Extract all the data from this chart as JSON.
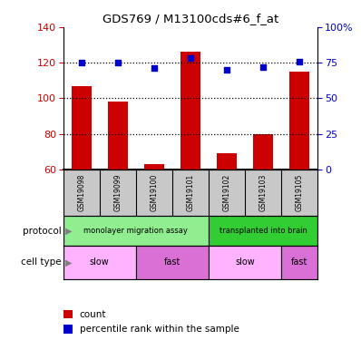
{
  "title": "GDS769 / M13100cds#6_f_at",
  "samples": [
    "GSM19098",
    "GSM19099",
    "GSM19100",
    "GSM19101",
    "GSM19102",
    "GSM19103",
    "GSM19105"
  ],
  "bar_values": [
    107,
    98,
    63,
    126,
    69,
    80,
    115
  ],
  "scatter_values": [
    75,
    75,
    71,
    78,
    70,
    72,
    76
  ],
  "ylim_left": [
    60,
    140
  ],
  "ylim_right": [
    0,
    100
  ],
  "yticks_left": [
    60,
    80,
    100,
    120,
    140
  ],
  "yticks_right": [
    0,
    25,
    50,
    75,
    100
  ],
  "ytick_labels_right": [
    "0",
    "25",
    "50",
    "75",
    "100%"
  ],
  "bar_color": "#cc0000",
  "scatter_color": "#0000cc",
  "protocol_label": "protocol",
  "cell_type_label": "cell type",
  "protocols": [
    {
      "label": "monolayer migration assay",
      "start": 0,
      "end": 4,
      "color": "#90ee90"
    },
    {
      "label": "transplanted into brain",
      "start": 4,
      "end": 7,
      "color": "#32cd32"
    }
  ],
  "cell_types": [
    {
      "label": "slow",
      "start": 0,
      "end": 2,
      "color": "#ffb3ff"
    },
    {
      "label": "fast",
      "start": 2,
      "end": 4,
      "color": "#da70d6"
    },
    {
      "label": "slow",
      "start": 4,
      "end": 6,
      "color": "#ffb3ff"
    },
    {
      "label": "fast",
      "start": 6,
      "end": 7,
      "color": "#da70d6"
    }
  ],
  "legend_count_label": "count",
  "legend_percentile_label": "percentile rank within the sample",
  "tick_label_color_left": "#cc0000",
  "tick_label_color_right": "#0000cc",
  "sample_bg_color": "#c8c8c8",
  "spine_color": "#000000"
}
